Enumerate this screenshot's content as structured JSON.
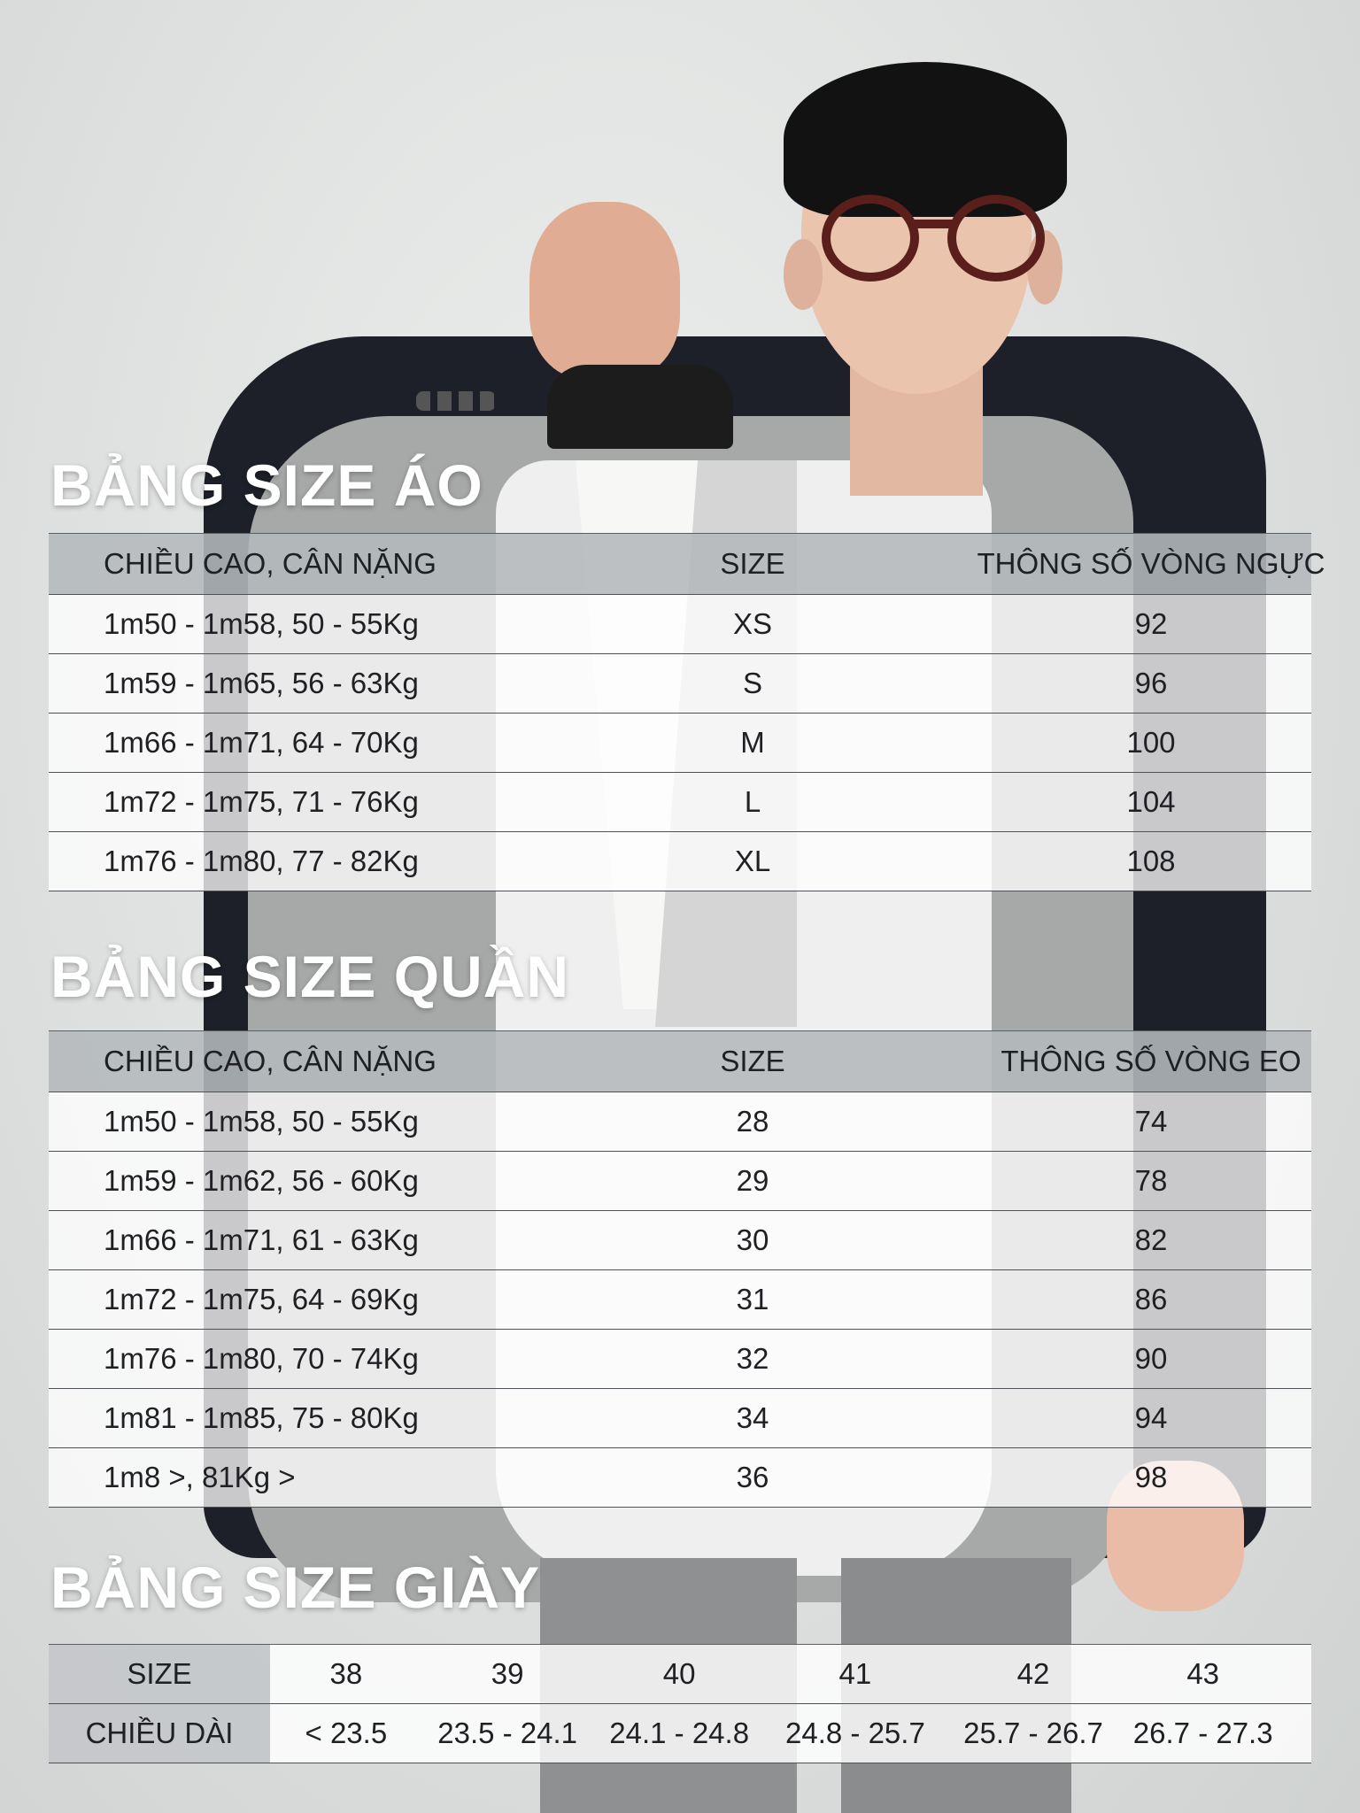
{
  "shirt_table": {
    "title": "BẢNG SIZE ÁO",
    "headers": [
      "CHIỀU CAO, CÂN NẶNG",
      "SIZE",
      "THÔNG SỐ VÒNG NGỰC"
    ],
    "rows": [
      [
        "1m50 - 1m58, 50 - 55Kg",
        "XS",
        "92"
      ],
      [
        "1m59 - 1m65, 56 - 63Kg",
        "S",
        "96"
      ],
      [
        "1m66 - 1m71, 64 - 70Kg",
        "M",
        "100"
      ],
      [
        "1m72 - 1m75, 71 - 76Kg",
        "L",
        "104"
      ],
      [
        "1m76 - 1m80, 77 - 82Kg",
        "XL",
        "108"
      ]
    ]
  },
  "pants_table": {
    "title": "BẢNG SIZE QUẦN",
    "headers": [
      "CHIỀU CAO, CÂN NẶNG",
      "SIZE",
      "THÔNG SỐ VÒNG EO"
    ],
    "rows": [
      [
        "1m50 - 1m58, 50 - 55Kg",
        "28",
        "74"
      ],
      [
        "1m59 - 1m62, 56 - 60Kg",
        "29",
        "78"
      ],
      [
        "1m66 - 1m71, 61 - 63Kg",
        "30",
        "82"
      ],
      [
        "1m72 - 1m75, 64 - 69Kg",
        "31",
        "86"
      ],
      [
        "1m76 - 1m80, 70 - 74Kg",
        "32",
        "90"
      ],
      [
        "1m81 - 1m85, 75 - 80Kg",
        "34",
        "94"
      ],
      [
        "1m8 >, 81Kg >",
        "36",
        "98"
      ]
    ]
  },
  "shoe_table": {
    "title": "BẢNG SIZE GIÀY",
    "size_label": "SIZE",
    "length_label": "CHIỀU DÀI",
    "sizes": [
      "38",
      "39",
      "40",
      "41",
      "42",
      "43"
    ],
    "lengths": [
      "< 23.5",
      "23.5 - 24.1",
      "24.1 - 24.8",
      "24.8 - 25.7",
      "25.7 - 26.7",
      "26.7 - 27.3"
    ]
  }
}
